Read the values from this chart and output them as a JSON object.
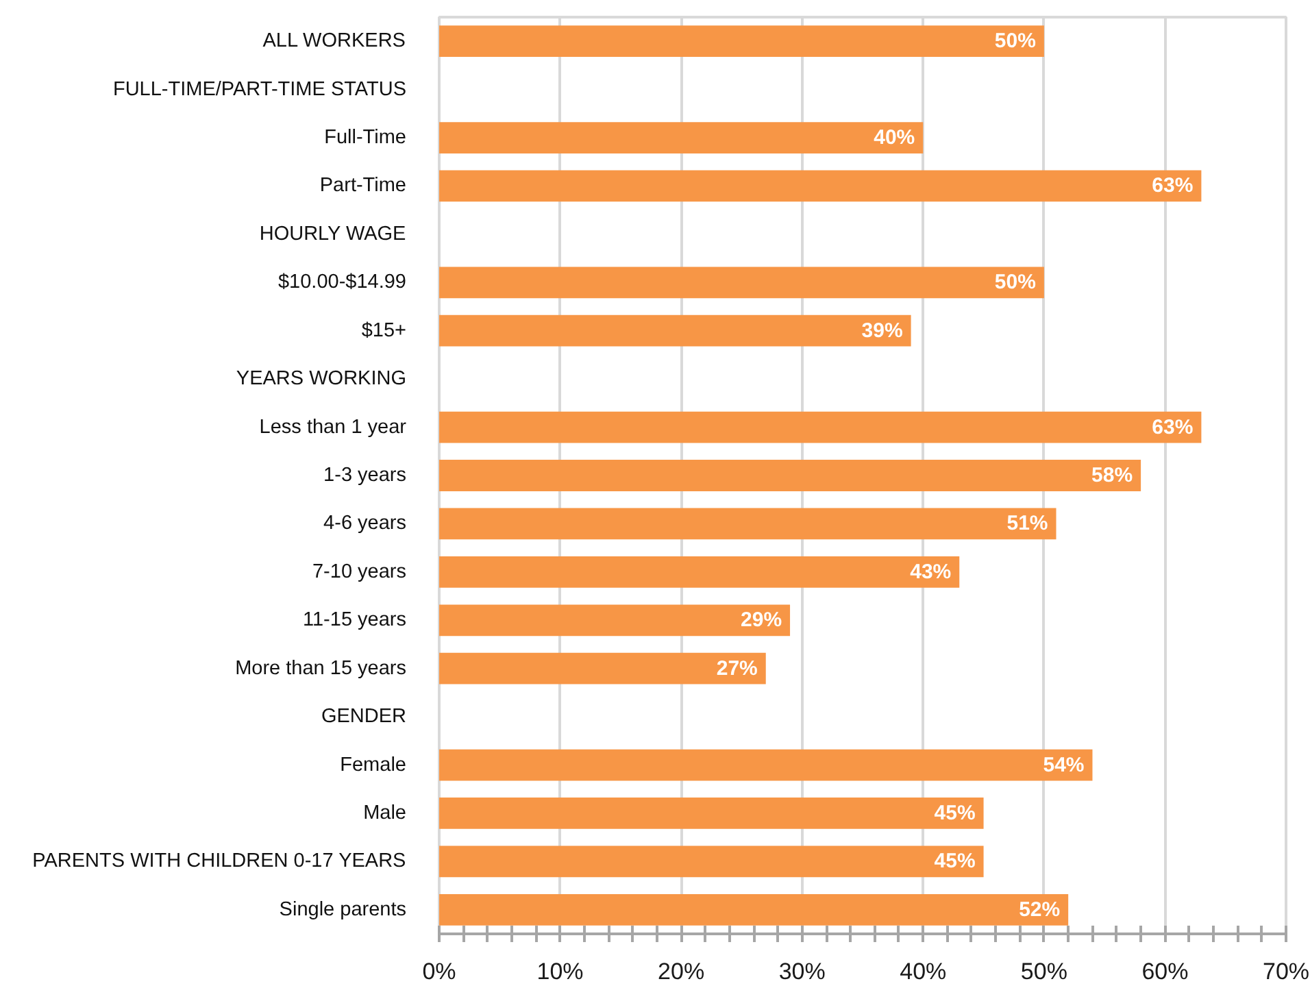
{
  "chart_data": {
    "type": "bar",
    "orientation": "horizontal",
    "categories": [
      "ALL WORKERS",
      "FULL-TIME/PART-TIME STATUS",
      "Full-Time",
      "Part-Time",
      "HOURLY WAGE",
      "$10.00-$14.99",
      "$15+",
      "YEARS WORKING",
      "Less than 1 year",
      "1-3 years",
      "4-6 years",
      "7-10 years",
      "11-15 years",
      "More than 15 years",
      "GENDER",
      "Female",
      "Male",
      "PARENTS WITH CHILDREN 0-17 YEARS",
      "Single parents"
    ],
    "values": [
      50,
      null,
      40,
      63,
      null,
      50,
      39,
      null,
      63,
      58,
      51,
      43,
      29,
      27,
      null,
      54,
      45,
      45,
      52
    ],
    "value_labels": [
      "50%",
      null,
      "40%",
      "63%",
      null,
      "50%",
      "39%",
      null,
      "63%",
      "58%",
      "51%",
      "43%",
      "29%",
      "27%",
      null,
      "54%",
      "45%",
      "45%",
      "52%"
    ],
    "color": "#f79646",
    "xlim": [
      0,
      70
    ],
    "xticks": [
      {
        "value": 0,
        "label": "0%"
      },
      {
        "value": 2,
        "label": null
      },
      {
        "value": 4,
        "label": null
      },
      {
        "value": 6,
        "label": null
      },
      {
        "value": 8,
        "label": null
      },
      {
        "value": 10,
        "label": "10%"
      },
      {
        "value": 12,
        "label": null
      },
      {
        "value": 14,
        "label": null
      },
      {
        "value": 16,
        "label": null
      },
      {
        "value": 18,
        "label": null
      },
      {
        "value": 20,
        "label": "20%"
      },
      {
        "value": 22,
        "label": null
      },
      {
        "value": 24,
        "label": null
      },
      {
        "value": 26,
        "label": null
      },
      {
        "value": 28,
        "label": null
      },
      {
        "value": 30,
        "label": "30%"
      },
      {
        "value": 32,
        "label": null
      },
      {
        "value": 34,
        "label": null
      },
      {
        "value": 36,
        "label": null
      },
      {
        "value": 38,
        "label": null
      },
      {
        "value": 40,
        "label": "40%"
      },
      {
        "value": 42,
        "label": null
      },
      {
        "value": 44,
        "label": null
      },
      {
        "value": 46,
        "label": null
      },
      {
        "value": 48,
        "label": null
      },
      {
        "value": 50,
        "label": "50%"
      },
      {
        "value": 52,
        "label": null
      },
      {
        "value": 54,
        "label": null
      },
      {
        "value": 56,
        "label": null
      },
      {
        "value": 58,
        "label": null
      },
      {
        "value": 60,
        "label": "60%"
      },
      {
        "value": 62,
        "label": null
      },
      {
        "value": 64,
        "label": null
      },
      {
        "value": 66,
        "label": null
      },
      {
        "value": 68,
        "label": null
      },
      {
        "value": 70,
        "label": "70%"
      }
    ],
    "grid": "x"
  }
}
